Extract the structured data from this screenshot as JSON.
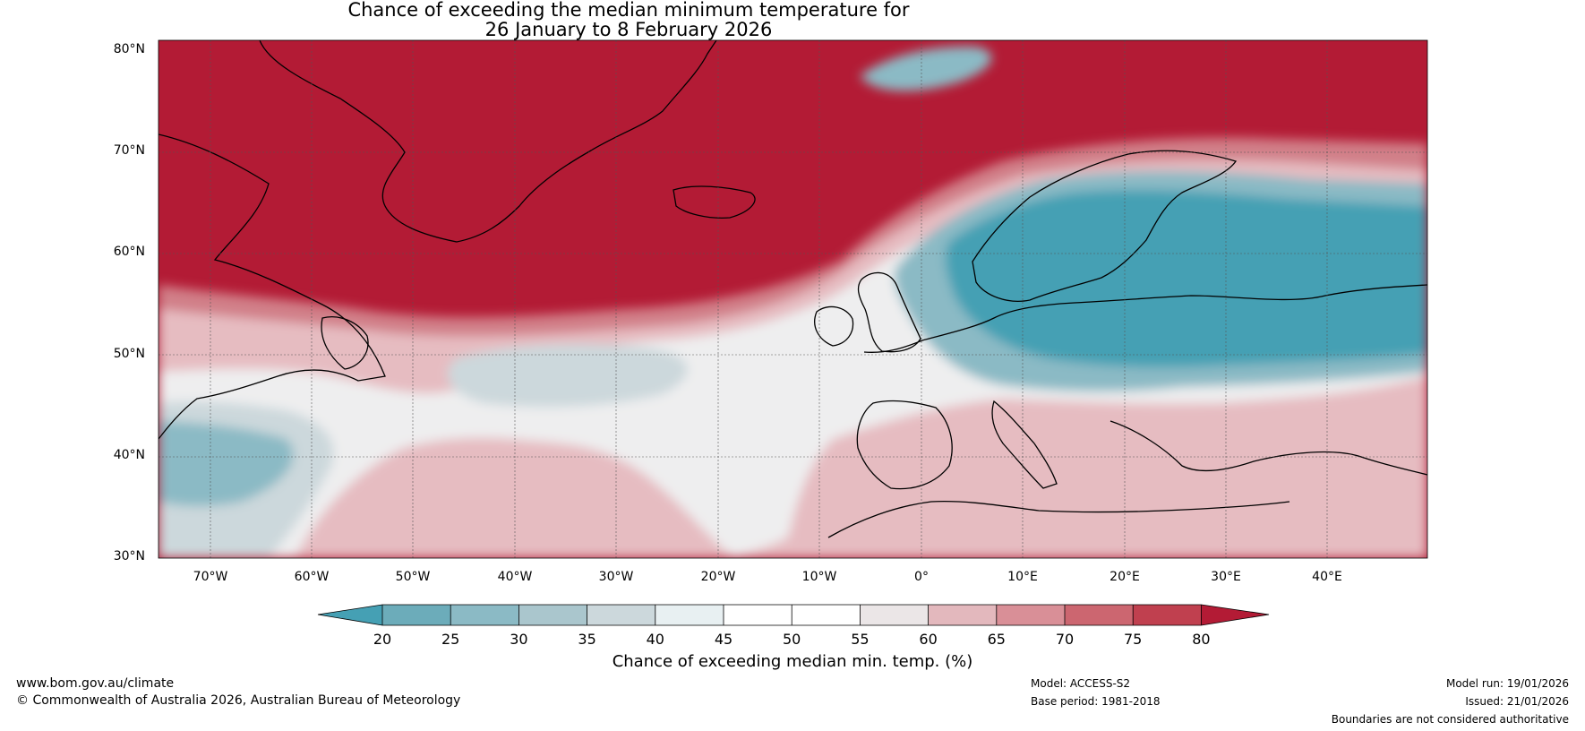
{
  "title_line1": "Chance of exceeding the median minimum temperature for",
  "title_line2": "26 January to 8 February 2026",
  "lat_labels": [
    "80°N",
    "70°N",
    "60°N",
    "50°N",
    "40°N",
    "30°N"
  ],
  "lon_labels": [
    "70°W",
    "60°W",
    "50°W",
    "40°W",
    "30°W",
    "20°W",
    "10°W",
    "0°",
    "10°E",
    "20°E",
    "30°E",
    "40°E"
  ],
  "colorbar": {
    "ticks": [
      "20",
      "25",
      "30",
      "35",
      "40",
      "45",
      "50",
      "55",
      "60",
      "65",
      "70",
      "75",
      "80"
    ],
    "colors": [
      "#45a0b4",
      "#6cacba",
      "#8bbac5",
      "#aac6cd",
      "#ccd8dc",
      "#e8f0f2",
      "#ffffff",
      "#ffffff",
      "#ebe6e7",
      "#e3b8bd",
      "#d98f97",
      "#cc6670",
      "#c0404f",
      "#b31b35"
    ],
    "label": "Chance of exceeding median min. temp. (%)"
  },
  "colors": {
    "hot": "#b31b35",
    "warm": "#d17f88",
    "warmish": "#e6bcc1",
    "neutral": "#eeeeef",
    "cool": "#ccd8dc",
    "cold": "#8bbac5",
    "coldest": "#45a0b4"
  },
  "footer": {
    "website": "www.bom.gov.au/climate",
    "copyright": "© Commonwealth of Australia 2026, Australian Bureau of Meteorology",
    "model": "Model: ACCESS-S2",
    "base_period": "Base period: 1981-2018",
    "model_run": "Model run: 19/01/2026",
    "issued": "Issued: 21/01/2026",
    "disclaimer": "Boundaries are not considered authoritative"
  }
}
